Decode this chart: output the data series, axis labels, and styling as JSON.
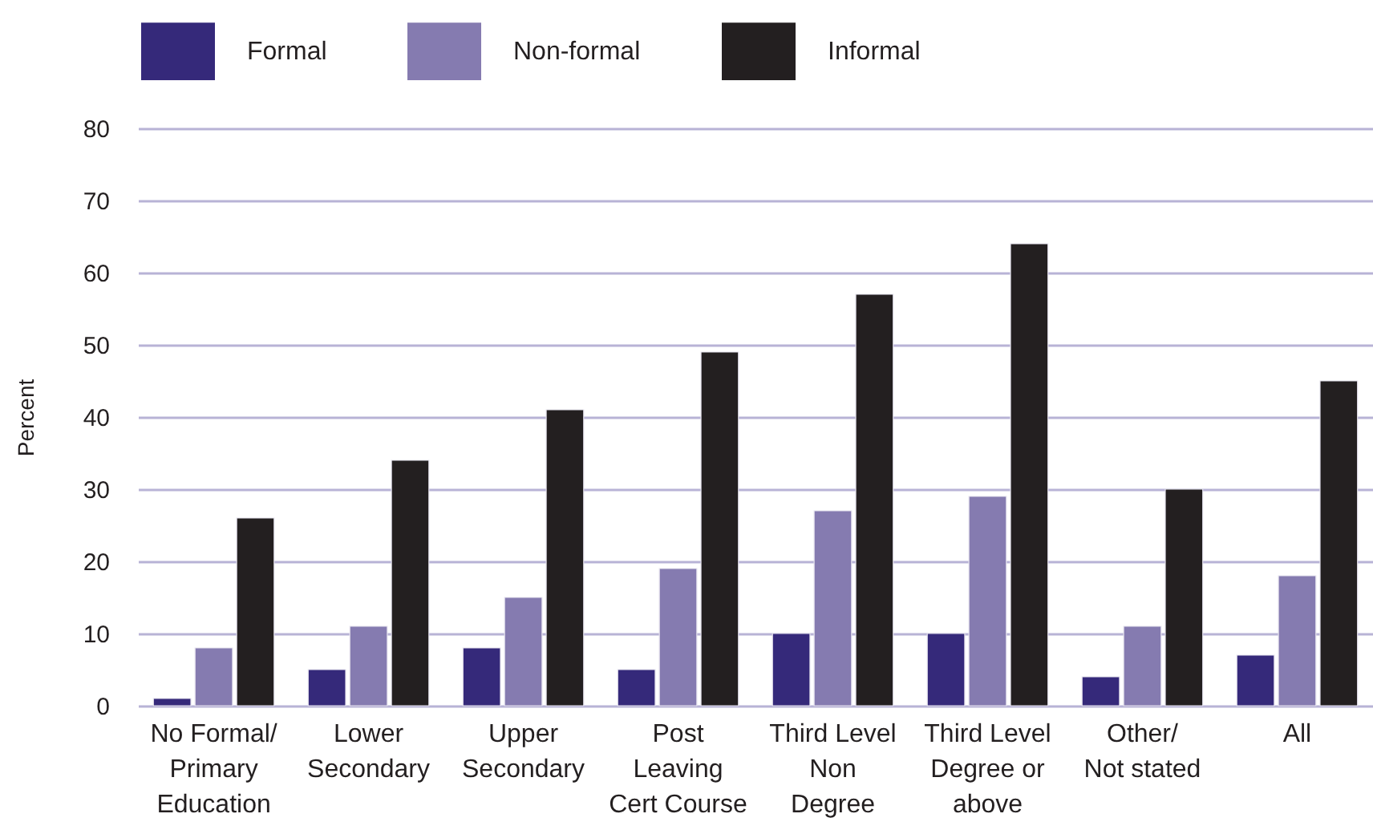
{
  "chart_data": {
    "type": "bar",
    "ylabel": "Percent",
    "categories": [
      "No Formal/\nPrimary\nEducation",
      "Lower\nSecondary",
      "Upper\nSecondary",
      "Post\nLeaving\nCert Course",
      "Third Level\nNon\nDegree",
      "Third Level\nDegree or\nabove",
      "Other/\nNot stated",
      "All"
    ],
    "series": [
      {
        "name": "Formal",
        "color": "#35297a",
        "values": [
          1,
          5,
          8,
          5,
          10,
          10,
          4,
          7
        ]
      },
      {
        "name": "Non-formal",
        "color": "#857bb0",
        "values": [
          8,
          11,
          15,
          19,
          27,
          29,
          11,
          18
        ]
      },
      {
        "name": "Informal",
        "color": "#231f20",
        "values": [
          26,
          34,
          41,
          49,
          57,
          64,
          30,
          45
        ]
      }
    ],
    "ylim": [
      0,
      80
    ],
    "yticks": [
      0,
      10,
      20,
      30,
      40,
      50,
      60,
      70,
      80
    ],
    "grid": "y",
    "legend": "top left"
  }
}
